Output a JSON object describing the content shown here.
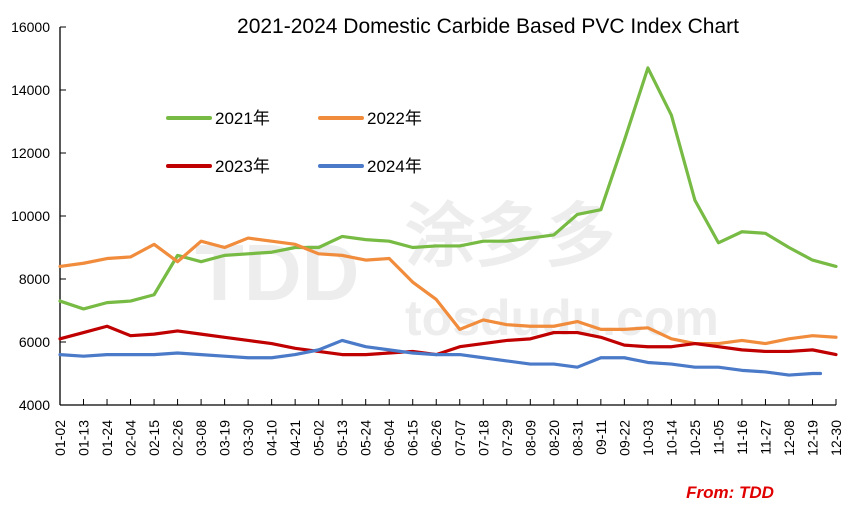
{
  "chart_data": {
    "type": "line",
    "title": "2021-2024 Domestic Carbide Based PVC Index Chart",
    "xlabel": "",
    "ylabel": "",
    "ylim": [
      4000,
      16000
    ],
    "yticks": [
      "4000",
      "6000",
      "8000",
      "10000",
      "12000",
      "14000",
      "16000"
    ],
    "ytick_values": [
      4000,
      6000,
      8000,
      10000,
      12000,
      14000,
      16000
    ],
    "grid": false,
    "legend_position": "upper-left",
    "categories": [
      "01-02",
      "01-13",
      "01-24",
      "02-04",
      "02-15",
      "02-26",
      "03-08",
      "03-19",
      "03-30",
      "04-10",
      "04-21",
      "05-02",
      "05-13",
      "05-24",
      "06-04",
      "06-15",
      "06-26",
      "07-07",
      "07-18",
      "07-29",
      "08-09",
      "08-20",
      "08-31",
      "09-11",
      "09-22",
      "10-03",
      "10-14",
      "10-25",
      "11-05",
      "11-16",
      "11-27",
      "12-08",
      "12-19",
      "12-30"
    ],
    "series": [
      {
        "name": "2021年",
        "color": "#77bb44",
        "values": [
          7300,
          7050,
          7250,
          7300,
          7500,
          8750,
          8550,
          8750,
          8800,
          8850,
          9000,
          9000,
          9350,
          9250,
          9200,
          9000,
          9050,
          9050,
          9200,
          9200,
          9300,
          9400,
          10050,
          10200,
          12400,
          14700,
          13200,
          10500,
          9150,
          9500,
          9450,
          9000,
          8600,
          8400
        ]
      },
      {
        "name": "2022年",
        "color": "#f08c3c",
        "values": [
          8400,
          8500,
          8650,
          8700,
          9100,
          8550,
          9200,
          9000,
          9300,
          9200,
          9100,
          8800,
          8750,
          8600,
          8650,
          7900,
          7350,
          6400,
          6700,
          6550,
          6500,
          6500,
          6650,
          6400,
          6400,
          6450,
          6100,
          5950,
          5950,
          6050,
          5950,
          6100,
          6200,
          6150
        ]
      },
      {
        "name": "2023年",
        "color": "#c00000",
        "values": [
          6100,
          6300,
          6500,
          6200,
          6250,
          6350,
          6250,
          6150,
          6050,
          5950,
          5800,
          5700,
          5600,
          5600,
          5650,
          5700,
          5600,
          5850,
          5950,
          6050,
          6100,
          6300,
          6300,
          6150,
          5900,
          5850,
          5850,
          5950,
          5850,
          5750,
          5700,
          5700,
          5750,
          5600
        ]
      },
      {
        "name": "2024年",
        "color": "#4a7ac8",
        "values": [
          5600,
          5550,
          5600,
          5600,
          5600,
          5650,
          5600,
          5550,
          5500,
          5500,
          5600,
          5750,
          6050,
          5850,
          5750,
          5650,
          5600,
          5600,
          5500,
          5400,
          5300,
          5300,
          5200,
          5500,
          5500,
          5350,
          5300,
          5200,
          5200,
          5100,
          5050,
          4950,
          5000,
          null
        ]
      }
    ]
  },
  "source_note": "From: TDD",
  "watermark": {
    "logo_text": "TDD",
    "cn_text": "涂多多",
    "url_text": "tosdudu.com"
  }
}
